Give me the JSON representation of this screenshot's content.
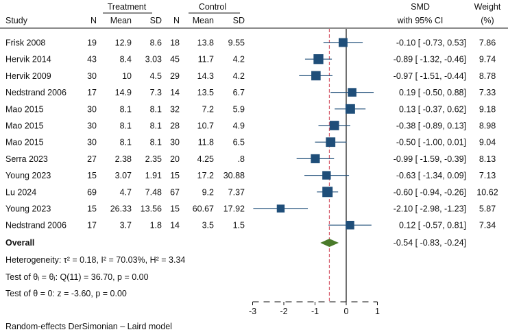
{
  "chart_data": {
    "type": "forest",
    "group_headers": {
      "treatment": "Treatment",
      "control": "Control"
    },
    "columns": {
      "study": "Study",
      "n_t": "N",
      "mean_t": "Mean",
      "sd_t": "SD",
      "n_c": "N",
      "mean_c": "Mean",
      "sd_c": "SD",
      "smd_line1": "SMD",
      "smd_line2": "with 95% CI",
      "weight_line1": "Weight",
      "weight_line2": "(%)"
    },
    "studies": [
      {
        "study": "Frisk 2008",
        "n_t": "19",
        "mean_t": "12.9",
        "sd_t": "8.6",
        "n_c": "18",
        "mean_c": "13.8",
        "sd_c": "9.55",
        "smd": -0.1,
        "lo": -0.73,
        "hi": 0.53,
        "ci_text": "-0.10 [ -0.73,  0.53]",
        "weight": "7.86"
      },
      {
        "study": "Hervik 2014",
        "n_t": "43",
        "mean_t": "8.4",
        "sd_t": "3.03",
        "n_c": "45",
        "mean_c": "11.7",
        "sd_c": "4.2",
        "smd": -0.89,
        "lo": -1.32,
        "hi": -0.46,
        "ci_text": "-0.89 [ -1.32, -0.46]",
        "weight": "9.74"
      },
      {
        "study": "Hervik 2009",
        "n_t": "30",
        "mean_t": "10",
        "sd_t": "4.5",
        "n_c": "29",
        "mean_c": "14.3",
        "sd_c": "4.2",
        "smd": -0.97,
        "lo": -1.51,
        "hi": -0.44,
        "ci_text": "-0.97 [ -1.51, -0.44]",
        "weight": "8.78"
      },
      {
        "study": "Nedstrand 2006",
        "n_t": "17",
        "mean_t": "14.9",
        "sd_t": "7.3",
        "n_c": "14",
        "mean_c": "13.5",
        "sd_c": "6.7",
        "smd": 0.19,
        "lo": -0.5,
        "hi": 0.88,
        "ci_text": "0.19 [ -0.50,  0.88]",
        "weight": "7.33"
      },
      {
        "study": "Mao 2015",
        "n_t": "30",
        "mean_t": "8.1",
        "sd_t": "8.1",
        "n_c": "32",
        "mean_c": "7.2",
        "sd_c": "5.9",
        "smd": 0.13,
        "lo": -0.37,
        "hi": 0.62,
        "ci_text": "0.13 [ -0.37,  0.62]",
        "weight": "9.18"
      },
      {
        "study": "Mao 2015",
        "n_t": "30",
        "mean_t": "8.1",
        "sd_t": "8.1",
        "n_c": "28",
        "mean_c": "10.7",
        "sd_c": "4.9",
        "smd": -0.38,
        "lo": -0.89,
        "hi": 0.13,
        "ci_text": "-0.38 [ -0.89,  0.13]",
        "weight": "8.98"
      },
      {
        "study": "Mao 2015",
        "n_t": "30",
        "mean_t": "8.1",
        "sd_t": "8.1",
        "n_c": "30",
        "mean_c": "11.8",
        "sd_c": "6.5",
        "smd": -0.5,
        "lo": -1.0,
        "hi": 0.01,
        "ci_text": "-0.50 [ -1.00,  0.01]",
        "weight": "9.04"
      },
      {
        "study": "Serra 2023",
        "n_t": "27",
        "mean_t": "2.38",
        "sd_t": "2.35",
        "n_c": "20",
        "mean_c": "4.25",
        "sd_c": ".8",
        "smd": -0.99,
        "lo": -1.59,
        "hi": -0.39,
        "ci_text": "-0.99 [ -1.59, -0.39]",
        "weight": "8.13"
      },
      {
        "study": "Young  2023",
        "n_t": "15",
        "mean_t": "3.07",
        "sd_t": "1.91",
        "n_c": "15",
        "mean_c": "17.2",
        "sd_c": "30.88",
        "smd": -0.63,
        "lo": -1.34,
        "hi": 0.09,
        "ci_text": "-0.63 [ -1.34,  0.09]",
        "weight": "7.13"
      },
      {
        "study": "Lu 2024",
        "n_t": "69",
        "mean_t": "4.7",
        "sd_t": "7.48",
        "n_c": "67",
        "mean_c": "9.2",
        "sd_c": "7.37",
        "smd": -0.6,
        "lo": -0.94,
        "hi": -0.26,
        "ci_text": "-0.60 [ -0.94, -0.26]",
        "weight": "10.62"
      },
      {
        "study": "Young 2023",
        "n_t": "15",
        "mean_t": "26.33",
        "sd_t": "13.56",
        "n_c": "15",
        "mean_c": "60.67",
        "sd_c": "17.92",
        "smd": -2.1,
        "lo": -2.98,
        "hi": -1.23,
        "ci_text": "-2.10 [ -2.98, -1.23]",
        "weight": "5.87"
      },
      {
        "study": "Nedstrand 2006",
        "n_t": "17",
        "mean_t": "3.7",
        "sd_t": "1.8",
        "n_c": "14",
        "mean_c": "3.5",
        "sd_c": "1.5",
        "smd": 0.12,
        "lo": -0.57,
        "hi": 0.81,
        "ci_text": "0.12 [ -0.57,  0.81]",
        "weight": "7.34"
      }
    ],
    "overall": {
      "label": "Overall",
      "smd": -0.54,
      "lo": -0.83,
      "hi": -0.24,
      "ci_text": "-0.54 [ -0.83, -0.24]"
    },
    "stats": {
      "heterogeneity": "Heterogeneity: τ² = 0.18, I² = 70.03%, H² = 3.34",
      "test_equal": "Test of θᵢ = θⱼ: Q(11) = 36.70, p = 0.00",
      "test_zero": "Test of θ = 0: z = -3.60, p = 0.00"
    },
    "x_axis": {
      "range": [
        -3,
        1
      ],
      "ticks": [
        -3,
        -2,
        -1,
        0,
        1
      ],
      "tick_labels": [
        "-3",
        "-2",
        "-1",
        "0",
        "1"
      ]
    },
    "model_note": "Random-effects DerSimonian – Laird model",
    "colors": {
      "marker": "#1f4e79",
      "diamond": "#4a7a2a",
      "overall_line": "#d65a6a",
      "text": "#111111"
    }
  }
}
